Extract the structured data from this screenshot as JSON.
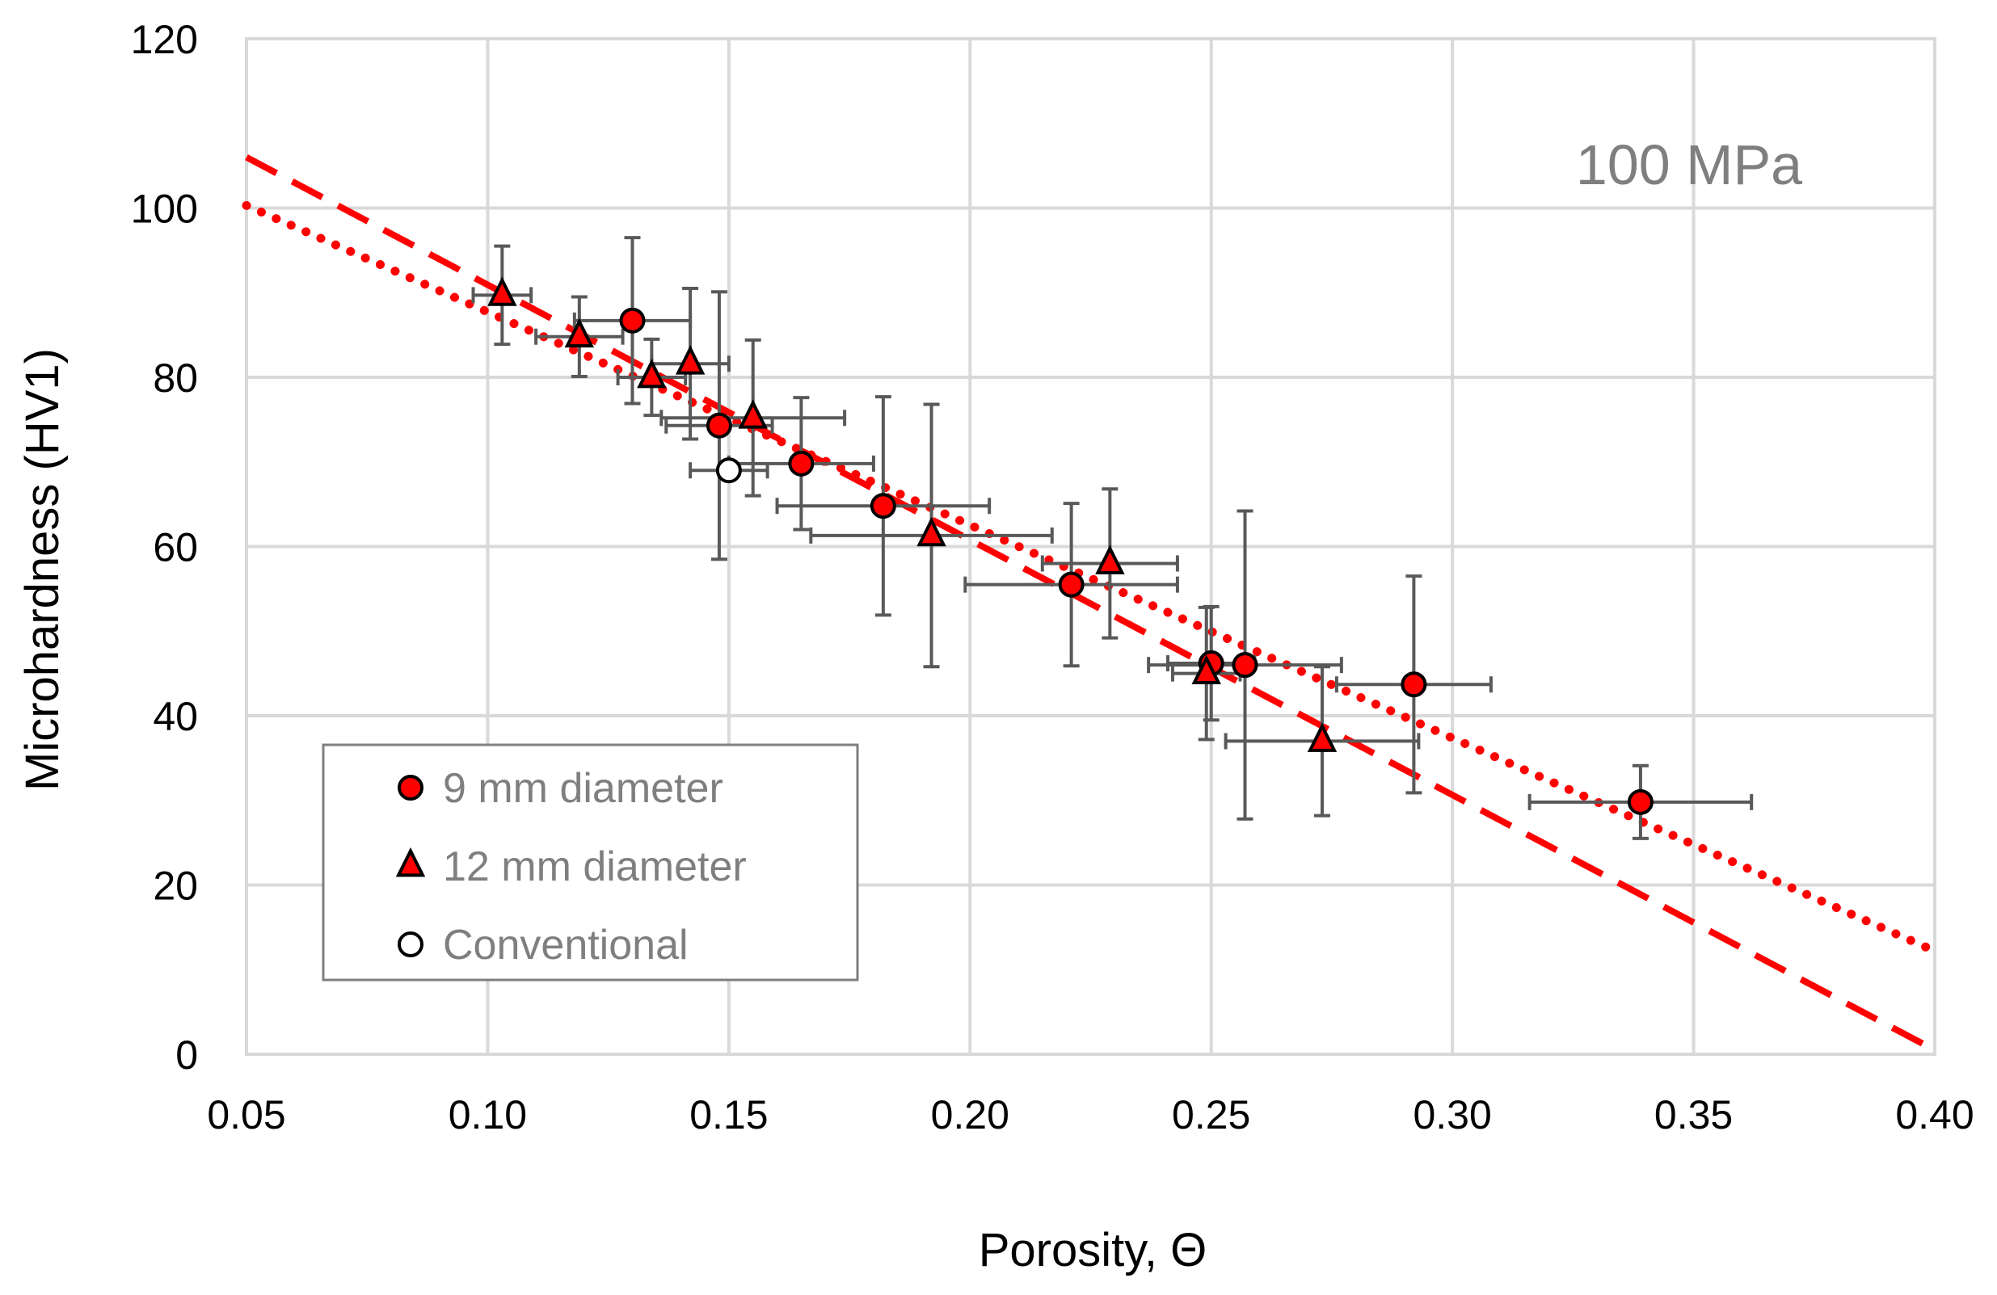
{
  "chart_data": {
    "type": "scatter",
    "xlabel": "Porosity, Θ",
    "ylabel": "Microhardness (HV1)",
    "annotation": "100 MPa",
    "xlim": [
      0.05,
      0.4
    ],
    "ylim": [
      0,
      120
    ],
    "x_ticks": [
      0.05,
      0.1,
      0.15,
      0.2,
      0.25,
      0.3,
      0.35,
      0.4
    ],
    "x_tick_labels": [
      "0.05",
      "0.10",
      "0.15",
      "0.20",
      "0.25",
      "0.30",
      "0.35",
      "0.40"
    ],
    "y_ticks": [
      0,
      20,
      40,
      60,
      80,
      100,
      120
    ],
    "y_tick_labels": [
      "0",
      "20",
      "40",
      "60",
      "80",
      "100",
      "120"
    ],
    "grid": true,
    "legend_position": "lower-left",
    "colors": {
      "marker_fill": "#ff0000",
      "marker_edge": "#000000",
      "open_fill": "#ffffff",
      "errorbar": "#595959",
      "trend": "#ff0000",
      "grid": "#d9d9d9",
      "legend_border": "#7f7f7f",
      "annotation": "#7f7f7f"
    },
    "series": [
      {
        "name": "9 mm diameter",
        "marker": "circle",
        "points": [
          {
            "x": 0.13,
            "y": 86.7,
            "xerr": 0.012,
            "yerr": 9.8
          },
          {
            "x": 0.148,
            "y": 74.3,
            "xerr": 0.011,
            "yerr": 15.8
          },
          {
            "x": 0.165,
            "y": 69.8,
            "xerr": 0.015,
            "yerr": 7.8
          },
          {
            "x": 0.182,
            "y": 64.8,
            "xerr": 0.022,
            "yerr": 12.9
          },
          {
            "x": 0.221,
            "y": 55.5,
            "xerr": 0.022,
            "yerr": 9.6
          },
          {
            "x": 0.25,
            "y": 46.2,
            "xerr": 0.009,
            "yerr": 6.7
          },
          {
            "x": 0.257,
            "y": 46.0,
            "xerr": 0.02,
            "yerr": 18.2
          },
          {
            "x": 0.292,
            "y": 43.7,
            "xerr": 0.016,
            "yerr": 12.8
          },
          {
            "x": 0.339,
            "y": 29.8,
            "xerr": 0.023,
            "yerr": 4.3
          }
        ]
      },
      {
        "name": "12 mm diameter",
        "marker": "triangle",
        "points": [
          {
            "x": 0.103,
            "y": 89.7,
            "xerr": 0.006,
            "yerr": 5.8
          },
          {
            "x": 0.119,
            "y": 84.8,
            "xerr": 0.009,
            "yerr": 4.7
          },
          {
            "x": 0.134,
            "y": 80.0,
            "xerr": 0.007,
            "yerr": 4.5
          },
          {
            "x": 0.142,
            "y": 81.6,
            "xerr": 0.008,
            "yerr": 8.9
          },
          {
            "x": 0.155,
            "y": 75.2,
            "xerr": 0.019,
            "yerr": 9.2
          },
          {
            "x": 0.192,
            "y": 61.3,
            "xerr": 0.025,
            "yerr": 15.5
          },
          {
            "x": 0.229,
            "y": 58.0,
            "xerr": 0.014,
            "yerr": 8.8
          },
          {
            "x": 0.249,
            "y": 45.0,
            "xerr": 0.007,
            "yerr": 7.8
          },
          {
            "x": 0.273,
            "y": 37.0,
            "xerr": 0.02,
            "yerr": 8.8
          }
        ]
      },
      {
        "name": "Conventional",
        "marker": "open-circle",
        "points": [
          {
            "x": 0.15,
            "y": 69.0,
            "xerr": 0.008,
            "yerr": 0
          }
        ]
      }
    ],
    "trendlines": [
      {
        "name": "dashed-fit",
        "style": "dashed",
        "x": [
          0.05,
          0.4
        ],
        "y": [
          106.0,
          0.5
        ]
      },
      {
        "name": "dotted-fit",
        "style": "dotted",
        "x": [
          0.05,
          0.4
        ],
        "y": [
          100.3,
          12.2
        ]
      }
    ]
  }
}
